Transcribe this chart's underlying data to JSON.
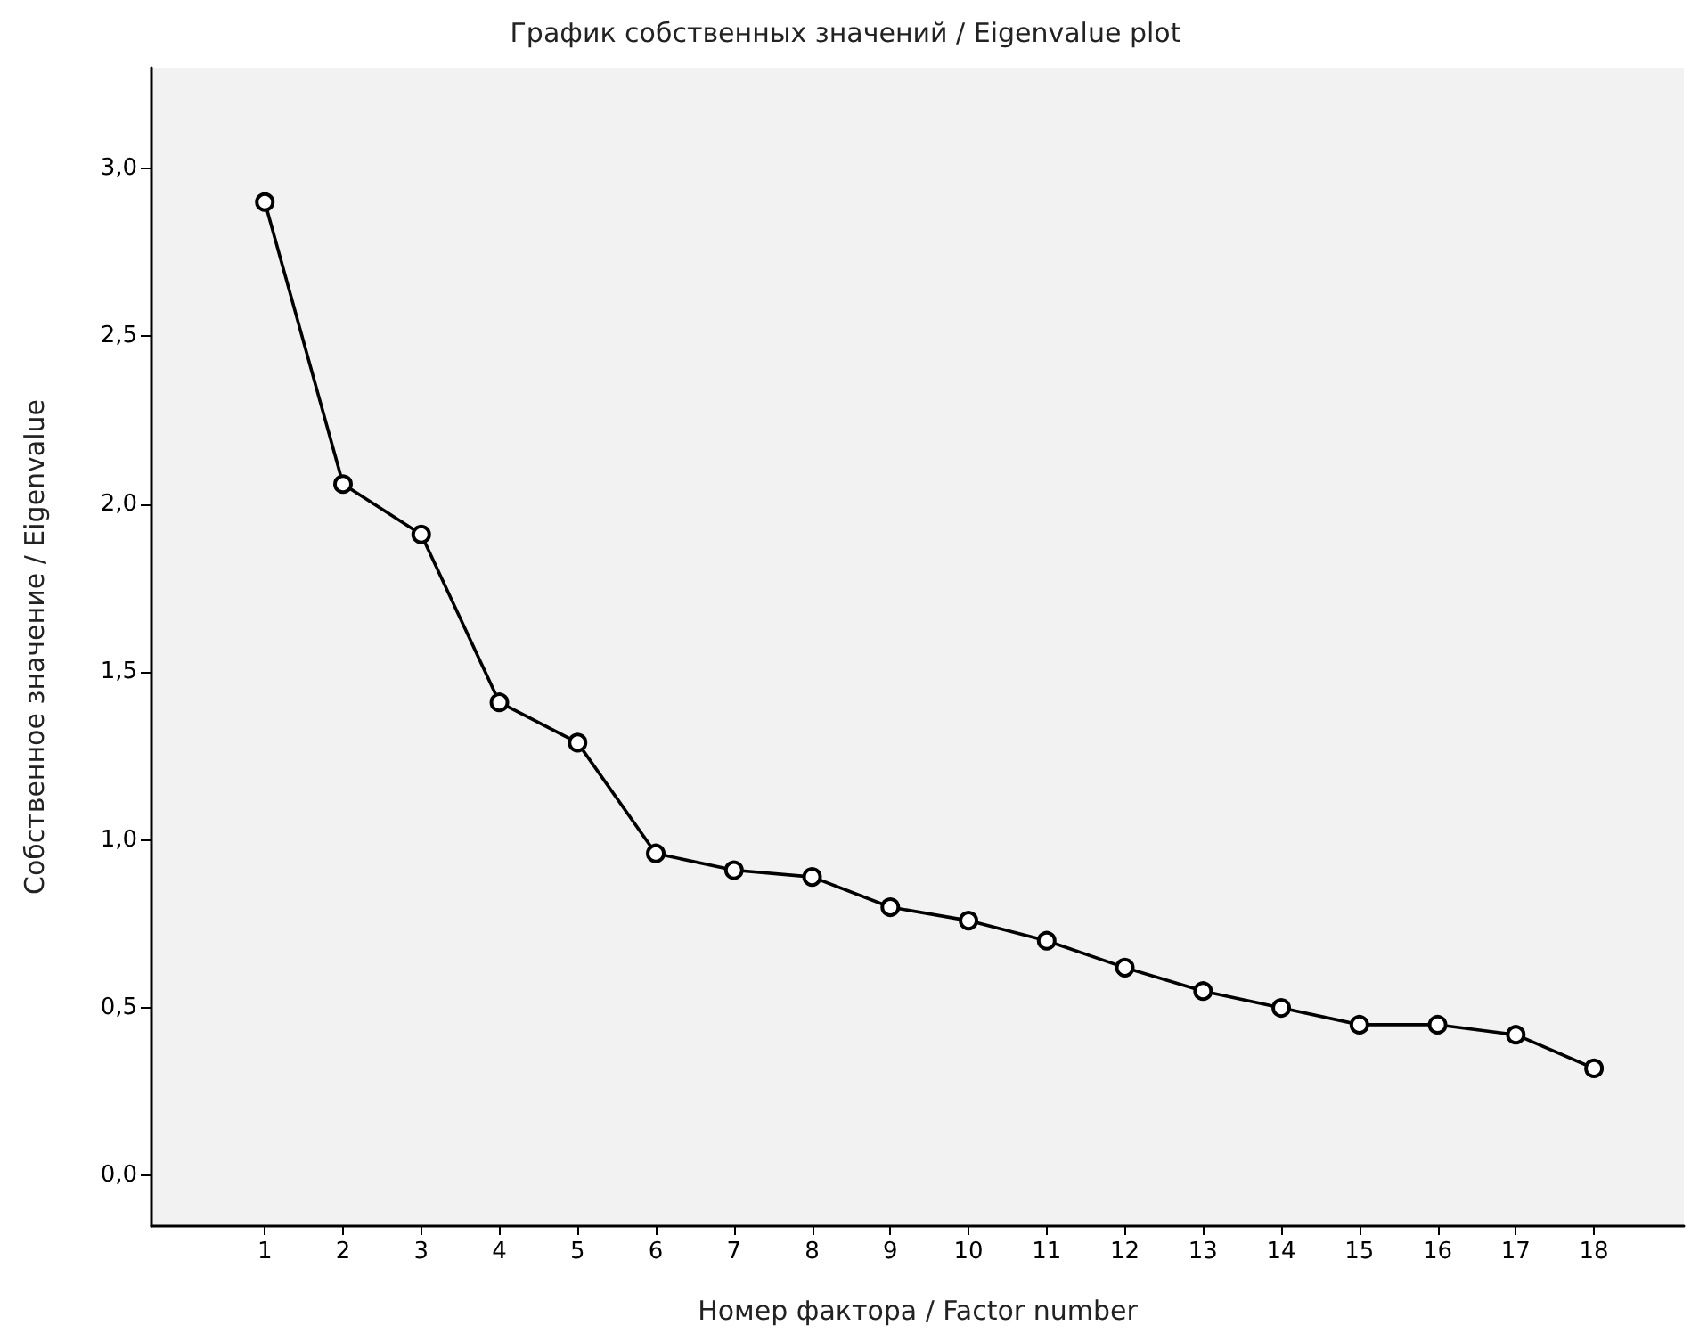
{
  "chart_data": {
    "type": "line",
    "title": "График собственных значений / Eigenvalue plot",
    "xlabel": "Номер фактора / Factor number",
    "ylabel": "Собственное значение / Eigenvalue",
    "x": [
      1,
      2,
      3,
      4,
      5,
      6,
      7,
      8,
      9,
      10,
      11,
      12,
      13,
      14,
      15,
      16,
      17,
      18
    ],
    "series": [
      {
        "color": "#000000",
        "values": [
          2.9,
          2.06,
          1.91,
          1.41,
          1.29,
          0.96,
          0.91,
          0.89,
          0.8,
          0.76,
          0.7,
          0.62,
          0.55,
          0.5,
          0.45,
          0.45,
          0.42,
          0.32
        ]
      }
    ],
    "xlim": [
      -0.45,
      19.15
    ],
    "xticks": [
      1,
      2,
      3,
      4,
      5,
      6,
      7,
      8,
      9,
      10,
      11,
      12,
      13,
      14,
      15,
      16,
      17,
      18
    ],
    "ylim": [
      -0.15,
      3.3
    ],
    "yticks": [
      {
        "value": 0,
        "label": "0,0"
      },
      {
        "value": 0.5,
        "label": "0,5"
      },
      {
        "value": 1,
        "label": "1,0"
      },
      {
        "value": 1.5,
        "label": "1,5"
      },
      {
        "value": 2,
        "label": "2,0"
      },
      {
        "value": 2.5,
        "label": "2,5"
      },
      {
        "value": 3,
        "label": "3,0"
      }
    ],
    "grid": false,
    "marker": "circle",
    "line_style": "solid"
  }
}
